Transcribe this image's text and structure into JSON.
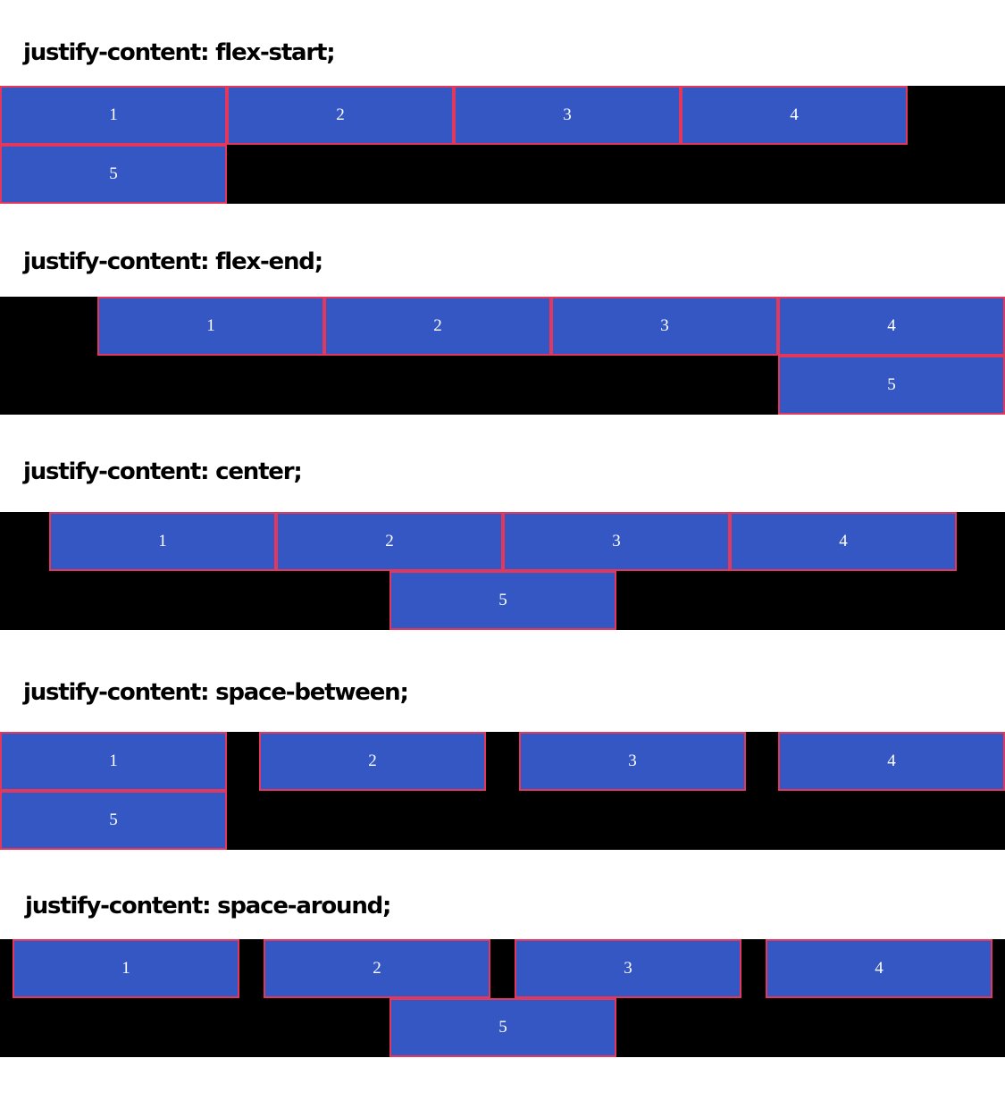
{
  "colors": {
    "container_background": "#000000",
    "box_fill": "#3557c3",
    "box_border": "#e3375c",
    "box_text": "#ffffff",
    "heading_text": "#000000"
  },
  "sections": [
    {
      "heading": "justify-content: flex-start;",
      "items": [
        "1",
        "2",
        "3",
        "4",
        "5"
      ]
    },
    {
      "heading": "justify-content: flex-end;",
      "items": [
        "1",
        "2",
        "3",
        "4",
        "5"
      ]
    },
    {
      "heading": "justify-content: center;",
      "items": [
        "1",
        "2",
        "3",
        "4",
        "5"
      ]
    },
    {
      "heading": "justify-content: space-between;",
      "items": [
        "1",
        "2",
        "3",
        "4",
        "5"
      ]
    },
    {
      "heading": "justify-content: space-around;",
      "items": [
        "1",
        "2",
        "3",
        "4",
        "5"
      ]
    }
  ]
}
